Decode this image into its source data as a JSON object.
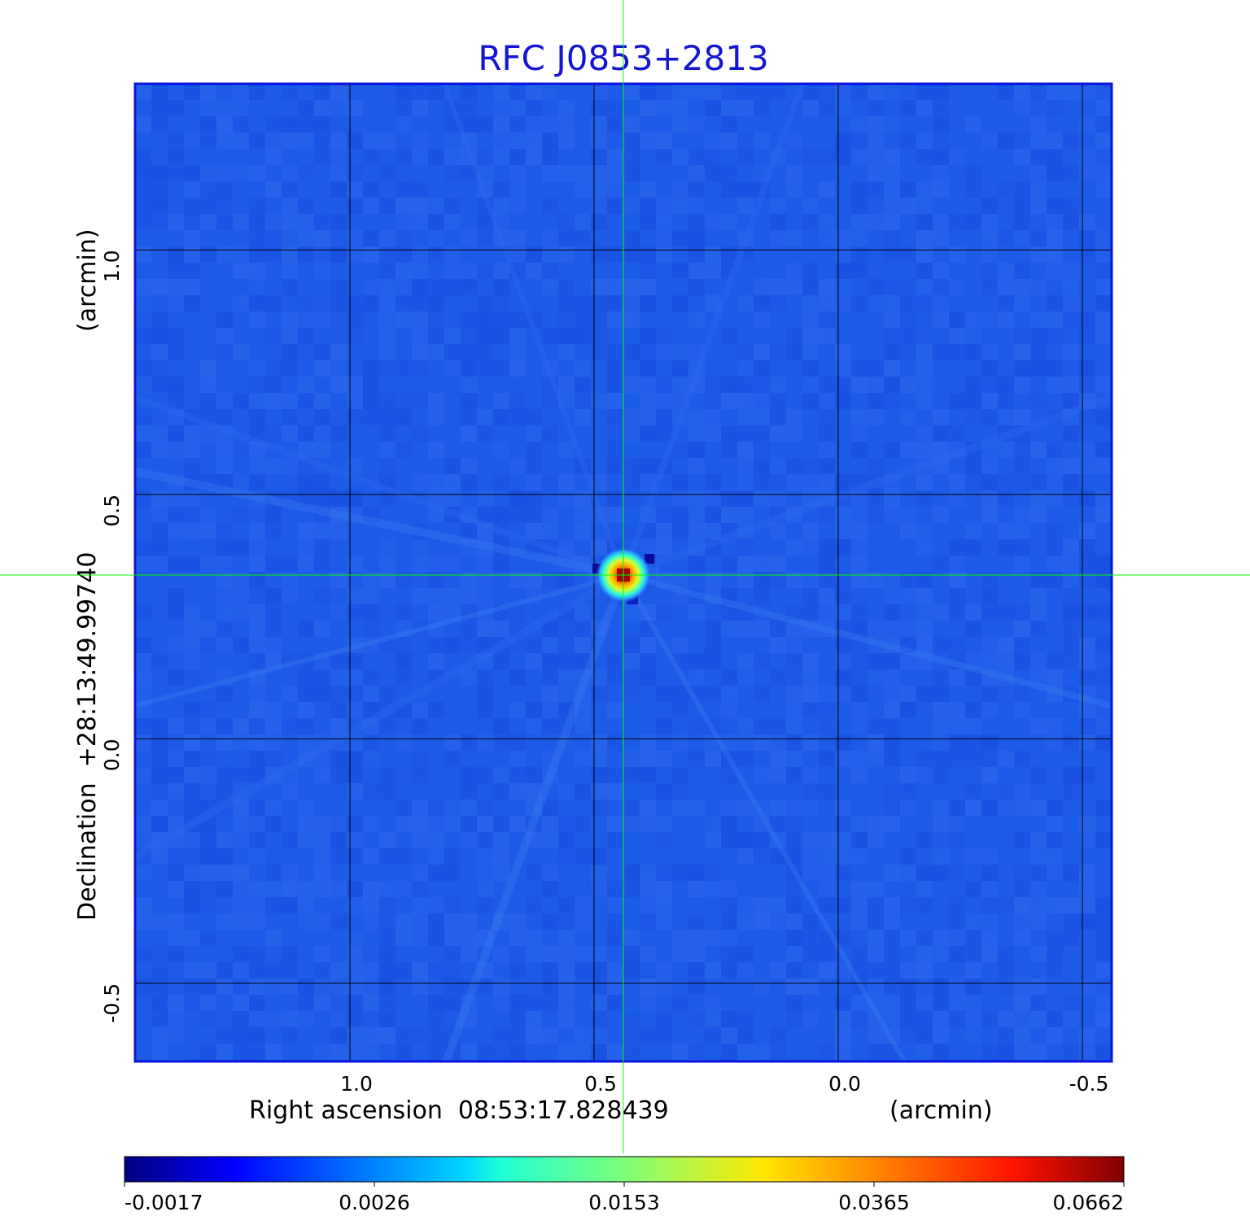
{
  "chart_data": {
    "type": "heatmap",
    "title": "RFC J0853+2813",
    "xlabel": "Right ascension  08:53:17.828439",
    "xunit": "(arcmin)",
    "ylabel": "Declination  +28:13:49.99740",
    "yunit": "(arcmin)",
    "x_ticks": [
      "1.0",
      "0.5",
      "0.0",
      "-0.5"
    ],
    "y_ticks": [
      "1.0",
      "0.5",
      "0.0",
      "-0.5"
    ],
    "xlim": [
      1.44,
      -0.56
    ],
    "ylim": [
      -0.66,
      1.34
    ],
    "grid": true,
    "colormap": "jet",
    "colorbar_ticks": [
      "-0.0017",
      "0.0026",
      "0.0153",
      "0.0365",
      "0.0662"
    ],
    "colorbar_range": [
      -0.0017,
      0.0662
    ],
    "source_peak": {
      "x": 0.44,
      "y": 0.335
    },
    "crosshair": {
      "x": 0.44,
      "y": 0.335,
      "color": "#00ff00"
    },
    "background_color": "#1e5ae8",
    "frame_color": "#0a14dc",
    "title_color": "#1414d2"
  }
}
